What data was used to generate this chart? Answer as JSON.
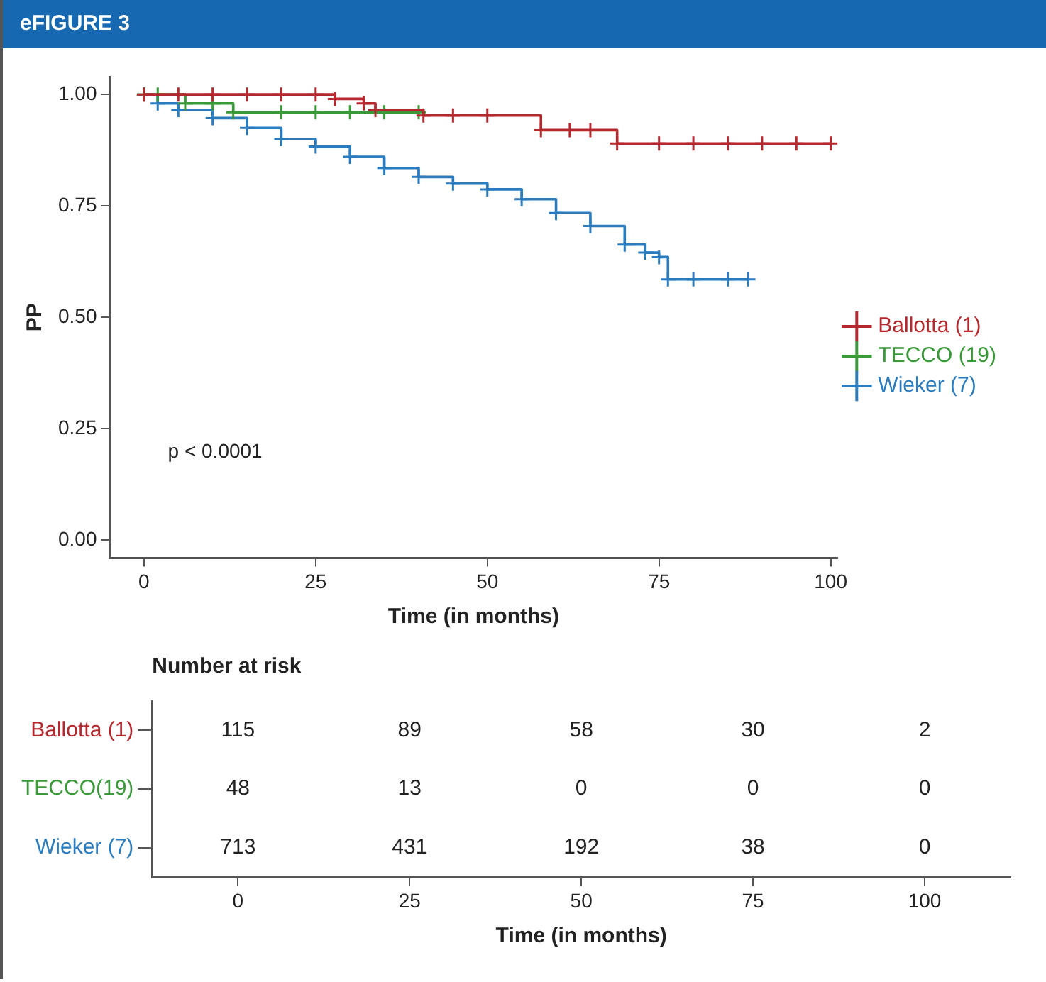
{
  "chart_data": [
    {
      "type": "step",
      "title": "eFIGURE 3",
      "xlabel": "Time (in months)",
      "ylabel": "PP",
      "xlim": [
        -5,
        101
      ],
      "xticks": [
        0,
        25,
        50,
        75,
        100
      ],
      "ylim": [
        -0.04,
        1.04
      ],
      "yticks": [
        {
          "value": 0,
          "label": "0.00"
        },
        {
          "value": 0.25,
          "label": "0.25"
        },
        {
          "value": 0.5,
          "label": "0.50"
        },
        {
          "value": 0.75,
          "label": "0.75"
        },
        {
          "value": 1,
          "label": "1.00"
        }
      ],
      "grid": false,
      "legend": "right",
      "marker": "cross",
      "annotations": [
        "p < 0.0001"
      ],
      "series": [
        {
          "name": "Ballotta (1)",
          "color": "#b5282e",
          "x": [
            0,
            5,
            10,
            15,
            20,
            25,
            27.8,
            32,
            33.7,
            40.7,
            45,
            50,
            57.8,
            62,
            65,
            68.9,
            75,
            80,
            85,
            90,
            95,
            100
          ],
          "values": [
            1,
            1,
            1,
            1,
            1,
            1,
            0.99,
            0.98,
            0.965,
            0.953,
            0.953,
            0.953,
            0.92,
            0.92,
            0.92,
            0.89,
            0.89,
            0.89,
            0.89,
            0.89,
            0.89,
            0.89
          ]
        },
        {
          "name": "TECCO (19)",
          "color": "#3a9a3a",
          "x": [
            0,
            2,
            6,
            10,
            13,
            20,
            25,
            30,
            35,
            40
          ],
          "values": [
            1,
            1,
            0.98,
            0.98,
            0.96,
            0.96,
            0.96,
            0.96,
            0.96,
            0.96
          ]
        },
        {
          "name": "Wieker (7)",
          "color": "#2b7bbf",
          "x": [
            0,
            2,
            5,
            10,
            15,
            20,
            25,
            30,
            35,
            40,
            45,
            50,
            55,
            60,
            65,
            70,
            73,
            75,
            76.3,
            80,
            85,
            88
          ],
          "values": [
            1,
            0.98,
            0.965,
            0.947,
            0.925,
            0.9,
            0.883,
            0.86,
            0.835,
            0.815,
            0.8,
            0.787,
            0.765,
            0.734,
            0.705,
            0.663,
            0.645,
            0.635,
            0.585,
            0.585,
            0.585,
            0.585
          ]
        }
      ]
    },
    {
      "type": "heatmap",
      "title": "Number at risk",
      "xlabel": "Time (in months)",
      "categories": [
        "0",
        "25",
        "50",
        "75",
        "100"
      ],
      "y_categories": [
        "Ballotta (1)",
        "TECCO(19)",
        "Wieker (7)"
      ],
      "colors": [
        "#b5282e",
        "#3a9a3a",
        "#2b7bbf"
      ],
      "data_labels": true,
      "cells": [
        [
          115,
          89,
          58,
          30,
          2
        ],
        [
          48,
          13,
          0,
          0,
          0
        ],
        [
          713,
          431,
          192,
          38,
          0
        ]
      ]
    }
  ]
}
